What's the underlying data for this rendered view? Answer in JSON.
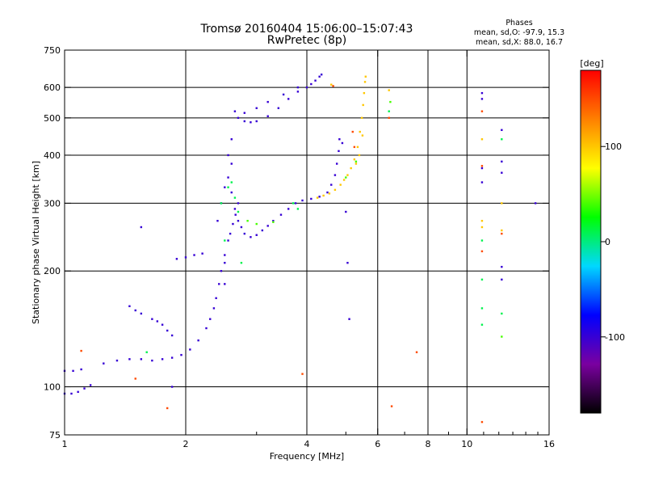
{
  "chart_data": {
    "type": "scatter",
    "title": "Tromsø 20160404 15:06:00–15:07:43",
    "subtitle": "RwPretec (8p)",
    "xlabel": "Frequency [MHz]",
    "ylabel": "Stationary phase Virtual Height [km]",
    "x_scale": "log",
    "y_scale": "log",
    "xlim": [
      1,
      16
    ],
    "ylim": [
      75,
      750
    ],
    "x_ticks": [
      1,
      2,
      4,
      6,
      8,
      10,
      16
    ],
    "x_tick_labels": [
      "1",
      "2",
      "4",
      "6",
      "8",
      "10",
      "16"
    ],
    "y_ticks": [
      75,
      100,
      200,
      300,
      400,
      500,
      600,
      750
    ],
    "y_tick_labels": [
      "75",
      "100",
      "200",
      "300",
      "400",
      "500",
      "600",
      "750"
    ],
    "x_gridlines": [
      2,
      4,
      6,
      8,
      10
    ],
    "y_gridlines": [
      100,
      200,
      300,
      400,
      500,
      600
    ],
    "grid": true,
    "stats": {
      "heading": "Phases",
      "line1": "mean, sd,O: -97.9, 15.3",
      "line2": "mean, sd,X:  88.0, 16.7"
    },
    "colorbar": {
      "label": "[deg]",
      "min": -180,
      "max": 180,
      "ticks": [
        100,
        0,
        -100
      ],
      "tick_labels": [
        "100",
        "0",
        "-100"
      ],
      "colors": [
        "#000000",
        "#7a00a0",
        "#0000ff",
        "#00d8ff",
        "#00ff00",
        "#ffff00",
        "#ff8000",
        "#ff0000"
      ]
    },
    "series": [
      {
        "name": "",
        "points": [
          [
            1.0,
            96
          ],
          [
            1.04,
            96
          ],
          [
            1.08,
            97
          ],
          [
            1.12,
            99
          ],
          [
            1.16,
            101
          ],
          [
            1.0,
            110
          ],
          [
            1.05,
            110
          ],
          [
            1.1,
            111
          ],
          [
            1.25,
            115
          ],
          [
            1.35,
            117
          ],
          [
            1.45,
            118
          ],
          [
            1.55,
            118
          ],
          [
            1.65,
            117
          ],
          [
            1.75,
            118
          ],
          [
            1.85,
            119
          ],
          [
            1.95,
            121
          ],
          [
            2.05,
            125
          ],
          [
            2.15,
            132
          ],
          [
            2.25,
            142
          ],
          [
            2.3,
            150
          ],
          [
            2.35,
            160
          ],
          [
            2.38,
            170
          ],
          [
            2.42,
            185
          ],
          [
            2.45,
            200
          ],
          [
            2.5,
            220
          ],
          [
            2.55,
            240
          ],
          [
            2.58,
            250
          ],
          [
            2.62,
            265
          ],
          [
            2.66,
            280
          ],
          [
            2.7,
            300
          ],
          [
            2.4,
            270
          ],
          [
            2.45,
            300
          ],
          [
            2.5,
            330
          ],
          [
            2.55,
            350
          ],
          [
            2.6,
            320
          ],
          [
            2.65,
            290
          ],
          [
            2.7,
            270
          ],
          [
            2.75,
            260
          ],
          [
            2.8,
            250
          ],
          [
            2.9,
            245
          ],
          [
            3.0,
            248
          ],
          [
            3.1,
            255
          ],
          [
            3.2,
            262
          ],
          [
            3.3,
            270
          ],
          [
            3.45,
            280
          ],
          [
            3.6,
            290
          ],
          [
            3.75,
            300
          ],
          [
            3.9,
            305
          ],
          [
            4.1,
            308
          ],
          [
            4.3,
            312
          ],
          [
            4.5,
            320
          ],
          [
            4.6,
            335
          ],
          [
            4.7,
            355
          ],
          [
            4.75,
            380
          ],
          [
            4.8,
            410
          ],
          [
            4.82,
            440
          ],
          [
            2.7,
            500
          ],
          [
            2.8,
            490
          ],
          [
            2.9,
            487
          ],
          [
            3.0,
            490
          ],
          [
            3.2,
            505
          ],
          [
            3.4,
            530
          ],
          [
            3.6,
            560
          ],
          [
            3.8,
            585
          ],
          [
            4.0,
            600
          ],
          [
            4.1,
            612
          ],
          [
            4.2,
            625
          ],
          [
            4.3,
            640
          ],
          [
            4.35,
            648
          ],
          [
            2.65,
            520
          ],
          [
            2.8,
            515
          ],
          [
            3.0,
            530
          ],
          [
            3.2,
            550
          ],
          [
            3.5,
            575
          ],
          [
            3.8,
            600
          ],
          [
            1.9,
            215
          ],
          [
            2.0,
            217
          ],
          [
            2.1,
            220
          ],
          [
            2.2,
            222
          ],
          [
            1.65,
            150
          ],
          [
            1.7,
            148
          ],
          [
            1.75,
            145
          ],
          [
            1.8,
            140
          ],
          [
            1.85,
            136
          ],
          [
            1.45,
            162
          ],
          [
            1.5,
            158
          ],
          [
            1.55,
            155
          ],
          [
            2.5,
            185
          ],
          [
            2.5,
            210
          ],
          [
            2.55,
            400
          ],
          [
            2.6,
            440
          ],
          [
            2.6,
            380
          ],
          [
            4.9,
            430
          ],
          [
            5.0,
            285
          ],
          [
            5.05,
            210
          ],
          [
            5.1,
            150
          ],
          [
            1.85,
            100
          ],
          [
            1.55,
            260
          ],
          [
            10.9,
            580
          ],
          [
            10.9,
            560
          ],
          [
            10.9,
            370
          ],
          [
            10.9,
            340
          ],
          [
            12.2,
            465
          ],
          [
            12.2,
            385
          ],
          [
            12.2,
            360
          ],
          [
            12.2,
            205
          ],
          [
            12.2,
            190
          ],
          [
            14.8,
            300
          ]
        ],
        "color_value": -100
      },
      {
        "name": "",
        "points": [
          [
            4.25,
            310
          ],
          [
            4.4,
            314
          ],
          [
            4.55,
            318
          ],
          [
            4.7,
            325
          ],
          [
            4.85,
            335
          ],
          [
            4.95,
            345
          ],
          [
            5.05,
            355
          ],
          [
            5.15,
            370
          ],
          [
            5.25,
            390
          ],
          [
            5.35,
            420
          ],
          [
            5.42,
            460
          ],
          [
            5.48,
            500
          ],
          [
            5.52,
            540
          ],
          [
            5.55,
            580
          ],
          [
            5.58,
            620
          ],
          [
            5.6,
            640
          ],
          [
            5.3,
            380
          ],
          [
            5.4,
            400
          ],
          [
            5.5,
            450
          ],
          [
            4.6,
            610
          ],
          [
            6.4,
            590
          ],
          [
            10.9,
            270
          ],
          [
            10.9,
            260
          ],
          [
            12.2,
            300
          ],
          [
            12.2,
            255
          ],
          [
            10.9,
            440
          ]
        ],
        "color_value": 100
      },
      {
        "name": "",
        "points": [
          [
            2.55,
            330
          ],
          [
            2.6,
            340
          ],
          [
            2.65,
            310
          ],
          [
            2.7,
            285
          ],
          [
            2.75,
            210
          ],
          [
            2.5,
            240
          ],
          [
            2.45,
            300
          ],
          [
            3.7,
            300
          ],
          [
            3.8,
            290
          ],
          [
            6.4,
            520
          ],
          [
            10.9,
            240
          ],
          [
            10.9,
            190
          ],
          [
            10.9,
            160
          ],
          [
            10.9,
            145
          ],
          [
            12.2,
            155
          ],
          [
            12.2,
            440
          ],
          [
            1.6,
            123
          ]
        ],
        "color_value": 10
      },
      {
        "name": "",
        "points": [
          [
            4.65,
            605
          ],
          [
            5.2,
            460
          ],
          [
            5.25,
            420
          ],
          [
            6.4,
            500
          ],
          [
            10.9,
            520
          ],
          [
            10.9,
            375
          ],
          [
            10.9,
            225
          ],
          [
            12.2,
            250
          ],
          [
            1.8,
            88
          ],
          [
            3.9,
            108
          ],
          [
            7.5,
            123
          ],
          [
            6.5,
            89
          ],
          [
            1.1,
            124
          ],
          [
            1.5,
            105
          ],
          [
            10.9,
            81
          ]
        ],
        "color_value": 150
      },
      {
        "name": "",
        "points": [
          [
            2.85,
            270
          ],
          [
            3.0,
            265
          ],
          [
            3.3,
            268
          ],
          [
            5.0,
            350
          ],
          [
            5.3,
            385
          ],
          [
            6.45,
            550
          ],
          [
            12.2,
            135
          ]
        ],
        "color_value": 40
      }
    ]
  }
}
